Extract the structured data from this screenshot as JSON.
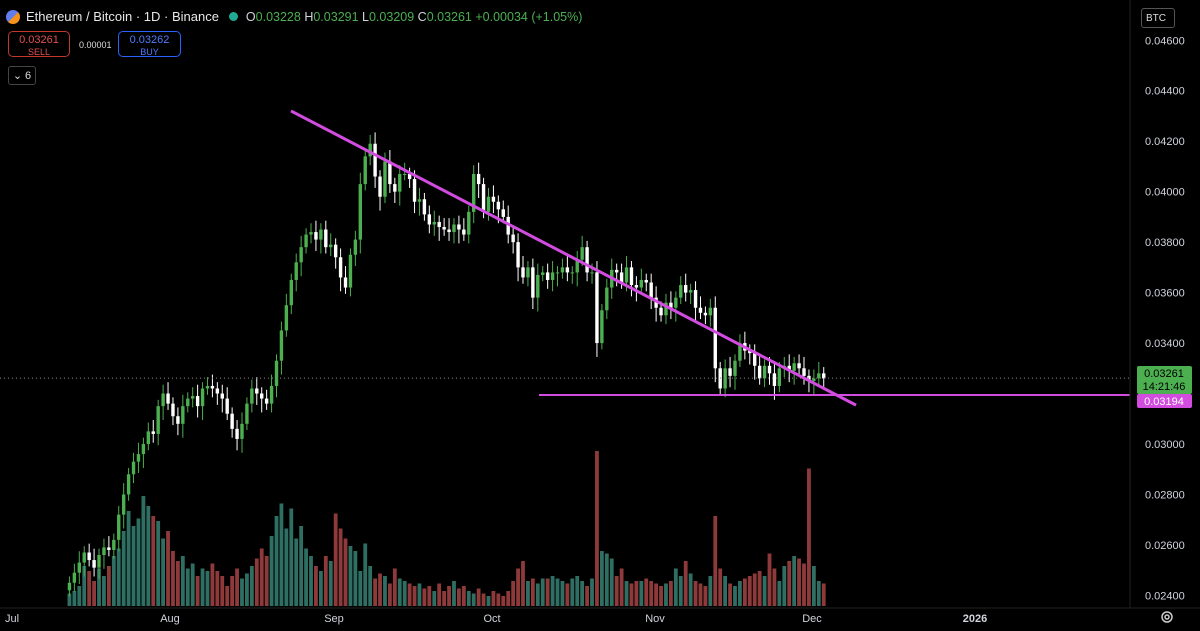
{
  "header": {
    "title": "Ethereum / Bitcoin · 1D · Binance",
    "open_label": "O",
    "open": "0.03228",
    "high_label": "H",
    "high": "0.03291",
    "low_label": "L",
    "low": "0.03209",
    "close_label": "C",
    "close": "0.03261",
    "change": "+0.00034 (+1.05%)"
  },
  "trade": {
    "sell_price": "0.03261",
    "sell_label": "SELL",
    "spread": "0.00001",
    "buy_price": "0.03262",
    "buy_label": "BUY"
  },
  "indicators_count": "6",
  "currency": "BTC",
  "colors": {
    "up": "#4caf50",
    "down": "#ffffff",
    "vol_up": "#2f6f63",
    "vol_down": "#8f3a3a",
    "trend": "#d24ce0",
    "last_price": "#4caf50",
    "support": "#d24ce0"
  },
  "chart_data": {
    "type": "candlestick",
    "ylim": [
      0.0235,
      0.0472
    ],
    "y_ticks": [
      "0.04600",
      "0.04400",
      "0.04200",
      "0.04000",
      "0.03800",
      "0.03600",
      "0.03400",
      "0.03200",
      "0.03000",
      "0.02800",
      "0.02600",
      "0.02400"
    ],
    "x_ticks": [
      "Jul",
      "Aug",
      "Sep",
      "Oct",
      "Nov",
      "Dec",
      "2026"
    ],
    "last_price_label": "0.03261",
    "countdown_label": "14:21:46",
    "support_label": "0.03194",
    "support_level": 0.03194,
    "trendline": [
      [
        "2025-08-23",
        0.0432
      ],
      [
        "2025-12-09",
        0.03154
      ]
    ],
    "candles_approx": {
      "note_omitted": false,
      "close": [
        0.0245,
        0.0249,
        0.0253,
        0.0257,
        0.0254,
        0.0251,
        0.0256,
        0.0259,
        0.0258,
        0.0262,
        0.0272,
        0.028,
        0.0288,
        0.0293,
        0.0296,
        0.03,
        0.0305,
        0.0304,
        0.0315,
        0.032,
        0.0316,
        0.0311,
        0.0308,
        0.0315,
        0.0318,
        0.0319,
        0.0315,
        0.0322,
        0.0323,
        0.0322,
        0.032,
        0.0318,
        0.0312,
        0.0306,
        0.0302,
        0.0308,
        0.0316,
        0.0322,
        0.032,
        0.0318,
        0.0316,
        0.0323,
        0.0333,
        0.0345,
        0.0355,
        0.0365,
        0.0372,
        0.0378,
        0.0383,
        0.0384,
        0.0381,
        0.0385,
        0.0378,
        0.0379,
        0.0374,
        0.0366,
        0.0362,
        0.0375,
        0.0381,
        0.0403,
        0.0414,
        0.0419,
        0.0406,
        0.0398,
        0.0412,
        0.0403,
        0.04,
        0.0407,
        0.0407,
        0.0405,
        0.0396,
        0.0397,
        0.0391,
        0.0387,
        0.0388,
        0.0386,
        0.0385,
        0.0384,
        0.0387,
        0.0385,
        0.0383,
        0.0392,
        0.0407,
        0.0403,
        0.0392,
        0.0398,
        0.0396,
        0.0393,
        0.039,
        0.0383,
        0.038,
        0.037,
        0.0366,
        0.037,
        0.0358,
        0.0367,
        0.0368,
        0.0365,
        0.0368,
        0.0368,
        0.037,
        0.0368,
        0.0368,
        0.0373,
        0.0378,
        0.0368,
        0.0368,
        0.034,
        0.0353,
        0.0362,
        0.0369,
        0.0368,
        0.0364,
        0.037,
        0.0363,
        0.0362,
        0.0365,
        0.0364,
        0.0358,
        0.0354,
        0.0351,
        0.0356,
        0.0354,
        0.0358,
        0.0363,
        0.036,
        0.0361,
        0.0354,
        0.0352,
        0.0351,
        0.0354,
        0.033,
        0.0322,
        0.033,
        0.0327,
        0.0333,
        0.034,
        0.0337,
        0.0336,
        0.0331,
        0.0326,
        0.0331,
        0.0328,
        0.0323,
        0.033,
        0.0331,
        0.0329,
        0.0332,
        0.033,
        0.0327,
        0.0325,
        0.0326,
        0.0328,
        0.0326
      ],
      "volume": [
        0.5,
        0.6,
        0.8,
        1.6,
        1.4,
        1.0,
        1.5,
        1.2,
        1.6,
        2.0,
        2.3,
        3.0,
        3.8,
        3.2,
        3.5,
        4.4,
        4.0,
        3.6,
        3.4,
        2.7,
        3.0,
        2.2,
        1.8,
        2.0,
        1.5,
        1.7,
        1.2,
        1.5,
        1.4,
        1.7,
        1.4,
        1.2,
        0.8,
        1.2,
        1.5,
        1.1,
        1.3,
        1.6,
        1.9,
        2.3,
        2.0,
        2.8,
        3.6,
        4.1,
        3.1,
        3.9,
        2.7,
        3.2,
        2.3,
        2.0,
        1.6,
        1.4,
        2.0,
        1.8,
        3.7,
        3.1,
        2.7,
        2.4,
        2.2,
        1.4,
        2.5,
        1.6,
        1.1,
        1.3,
        1.2,
        0.9,
        1.5,
        1.1,
        1.0,
        0.9,
        0.8,
        0.9,
        0.7,
        0.8,
        0.6,
        0.9,
        0.6,
        0.8,
        1.0,
        0.7,
        0.8,
        0.6,
        0.5,
        0.7,
        0.5,
        0.4,
        0.6,
        0.5,
        0.4,
        0.6,
        1.0,
        1.5,
        1.8,
        1.0,
        1.1,
        0.9,
        1.1,
        1.1,
        1.2,
        1.1,
        1.0,
        0.9,
        1.1,
        1.2,
        1.0,
        0.8,
        1.1,
        6.2,
        2.2,
        2.1,
        1.9,
        1.2,
        1.5,
        1.0,
        0.9,
        1.0,
        1.0,
        1.1,
        1.0,
        0.9,
        0.8,
        0.9,
        1.0,
        1.5,
        1.2,
        1.8,
        1.3,
        1.0,
        0.9,
        0.8,
        1.2,
        3.6,
        1.5,
        1.2,
        0.9,
        0.8,
        1.0,
        1.1,
        1.2,
        1.3,
        1.4,
        1.2,
        2.1,
        1.5,
        1.0,
        1.6,
        1.8,
        2.0,
        1.9,
        1.7,
        5.5,
        1.6,
        1.0,
        0.9
      ]
    }
  }
}
